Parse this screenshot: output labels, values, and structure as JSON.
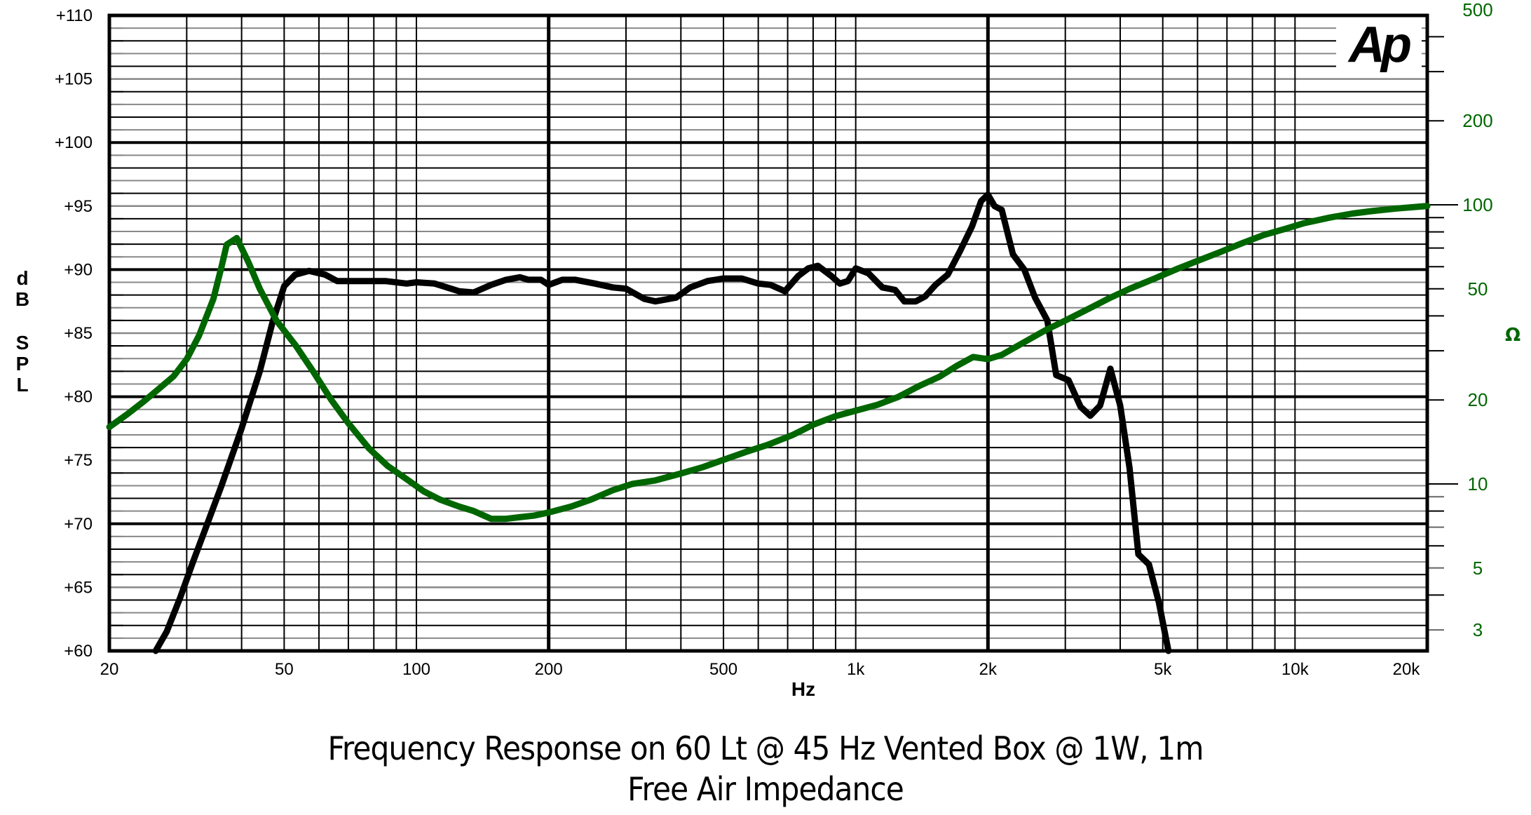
{
  "chart_data": {
    "type": "line",
    "title": "Frequency Response on 60 Lt @  45 Hz Vented Box @ 1W, 1m",
    "subtitle": "Free Air Impedance",
    "xlabel": "Hz",
    "ylabel": "dB SPL",
    "ylabel_right": "Ω",
    "xscale": "log",
    "xlim": [
      20,
      20000
    ],
    "ylim": [
      60,
      110
    ],
    "ylim_right": [
      2,
      500
    ],
    "yscale_right": "log",
    "grid": true,
    "logo": "Ap",
    "x_ticks": [
      {
        "value": 20,
        "label": "20"
      },
      {
        "value": 50,
        "label": "50"
      },
      {
        "value": 100,
        "label": "100"
      },
      {
        "value": 200,
        "label": "200"
      },
      {
        "value": 500,
        "label": "500"
      },
      {
        "value": 1000,
        "label": "1k"
      },
      {
        "value": 2000,
        "label": "2k"
      },
      {
        "value": 5000,
        "label": "5k"
      },
      {
        "value": 10000,
        "label": "10k"
      },
      {
        "value": 20000,
        "label": "20k"
      }
    ],
    "y_ticks": [
      {
        "value": 110,
        "label": "+110"
      },
      {
        "value": 105,
        "label": "+105"
      },
      {
        "value": 100,
        "label": "+100"
      },
      {
        "value": 95,
        "label": "+95"
      },
      {
        "value": 90,
        "label": "+90"
      },
      {
        "value": 85,
        "label": "+85"
      },
      {
        "value": 80,
        "label": "+80"
      },
      {
        "value": 75,
        "label": "+75"
      },
      {
        "value": 70,
        "label": "+70"
      },
      {
        "value": 65,
        "label": "+65"
      },
      {
        "value": 60,
        "label": "+60"
      }
    ],
    "y_right_ticks": [
      {
        "value": 500,
        "label": "500"
      },
      {
        "value": 200,
        "label": "200"
      },
      {
        "value": 100,
        "label": "100"
      },
      {
        "value": 50,
        "label": "50"
      },
      {
        "value": 20,
        "label": "20"
      },
      {
        "value": 10,
        "label": "10"
      },
      {
        "value": 5,
        "label": "5"
      },
      {
        "value": 3,
        "label": "3"
      }
    ],
    "series": [
      {
        "name": "Frequency Response (dB SPL)",
        "axis": "left",
        "color": "#000000",
        "x": [
          25.5,
          27,
          29,
          31,
          33,
          36,
          40,
          44,
          47,
          50,
          53,
          57,
          62,
          66,
          75,
          85,
          95,
          100,
          110,
          125,
          135,
          148,
          160,
          172,
          180,
          192,
          200,
          215,
          230,
          255,
          280,
          300,
          330,
          350,
          390,
          420,
          460,
          500,
          550,
          600,
          640,
          690,
          740,
          780,
          820,
          880,
          920,
          960,
          1000,
          1070,
          1150,
          1230,
          1290,
          1370,
          1440,
          1520,
          1620,
          1730,
          1840,
          1930,
          2000,
          2070,
          2150,
          2280,
          2420,
          2560,
          2730,
          2860,
          3050,
          3250,
          3420,
          3600,
          3800,
          4000,
          4200,
          4400,
          4650,
          4900,
          5150
        ],
        "values": [
          60.0,
          61.5,
          64.2,
          67.0,
          69.5,
          73.0,
          77.5,
          82.0,
          85.8,
          88.7,
          89.6,
          89.9,
          89.6,
          89.1,
          89.1,
          89.1,
          88.9,
          89.0,
          88.9,
          88.3,
          88.2,
          88.8,
          89.2,
          89.4,
          89.2,
          89.2,
          88.8,
          89.2,
          89.2,
          88.9,
          88.6,
          88.5,
          87.7,
          87.5,
          87.8,
          88.6,
          89.1,
          89.3,
          89.3,
          88.9,
          88.8,
          88.3,
          89.5,
          90.1,
          90.3,
          89.5,
          88.9,
          89.1,
          90.1,
          89.7,
          88.6,
          88.4,
          87.5,
          87.5,
          87.9,
          88.8,
          89.6,
          91.5,
          93.4,
          95.4,
          95.9,
          95.0,
          94.7,
          91.2,
          90.0,
          87.8,
          86.0,
          81.7,
          81.3,
          79.2,
          78.5,
          79.3,
          82.2,
          79.3,
          74.4,
          67.6,
          66.8,
          63.8,
          60.0
        ]
      },
      {
        "name": "Free Air Impedance (Ω)",
        "axis": "right",
        "color": "#006600",
        "x": [
          20,
          22,
          24,
          26,
          28,
          30,
          32,
          34.5,
          36,
          37,
          39,
          41.5,
          44,
          48,
          53,
          58,
          64,
          70,
          78,
          86,
          95,
          104,
          113,
          125,
          135,
          148,
          160,
          172,
          185,
          200,
          225,
          250,
          280,
          310,
          350,
          400,
          450,
          500,
          560,
          630,
          720,
          800,
          900,
          1000,
          1120,
          1250,
          1400,
          1550,
          1700,
          1850,
          2000,
          2150,
          2400,
          2700,
          3000,
          3400,
          3800,
          4200,
          4800,
          5400,
          6000,
          6800,
          7600,
          8500,
          9500,
          10500,
          12000,
          13500,
          15000,
          17000,
          20000
        ],
        "values": [
          16.0,
          17.8,
          19.8,
          22.0,
          24.3,
          28.0,
          34.0,
          46.0,
          60.0,
          72.0,
          76.0,
          62.0,
          50.0,
          38.5,
          31.5,
          25.5,
          20.0,
          16.5,
          13.4,
          11.6,
          10.4,
          9.4,
          8.8,
          8.3,
          8.0,
          7.5,
          7.5,
          7.6,
          7.7,
          7.9,
          8.3,
          8.8,
          9.5,
          10.0,
          10.3,
          10.9,
          11.5,
          12.2,
          13.0,
          13.8,
          15.0,
          16.3,
          17.5,
          18.3,
          19.2,
          20.5,
          22.5,
          24.2,
          26.5,
          28.5,
          28.0,
          29.0,
          32.0,
          35.5,
          38.5,
          42.5,
          46.5,
          50.0,
          54.5,
          59.0,
          63.0,
          68.0,
          73.0,
          78.0,
          82.0,
          86.0,
          90.0,
          93.0,
          95.0,
          97.0,
          99.0
        ]
      }
    ]
  }
}
